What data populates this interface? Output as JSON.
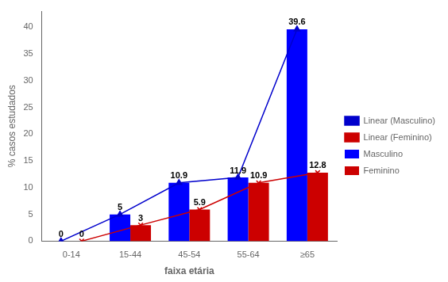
{
  "chart_data": {
    "type": "bar",
    "categories": [
      "0-14",
      "15-44",
      "45-54",
      "55-64",
      "≥65"
    ],
    "series": [
      {
        "name": "Masculino",
        "type": "bar",
        "color": "#0000FF",
        "values": [
          0,
          5,
          10.9,
          11.9,
          39.6
        ]
      },
      {
        "name": "Feminino",
        "type": "bar",
        "color": "#CC0000",
        "values": [
          0,
          3,
          5.9,
          10.9,
          12.8
        ]
      },
      {
        "name": "Linear (Masculino)",
        "type": "line",
        "color": "#0000CC",
        "marker": "triangle",
        "values": [
          0,
          5,
          10.9,
          11.9,
          39.6
        ]
      },
      {
        "name": "Linear (Feminino)",
        "type": "line",
        "color": "#CC0000",
        "marker": "x",
        "values": [
          0,
          3,
          5.9,
          10.9,
          12.8
        ]
      }
    ],
    "xlabel": "faixa etária",
    "ylabel": "% casos estudados",
    "ylim": [
      0,
      43
    ],
    "yticks": [
      0,
      5,
      10,
      15,
      20,
      25,
      30,
      35,
      40
    ],
    "grid": false,
    "legend": "right",
    "data_labels": true
  }
}
